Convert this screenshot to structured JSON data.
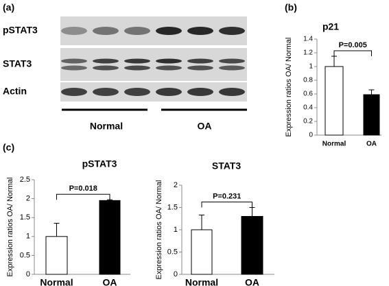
{
  "blot": {
    "label": "(a)",
    "rows": [
      "pSTAT3",
      "STAT3",
      "Actin"
    ],
    "groups": [
      "Normal",
      "OA"
    ]
  },
  "chart_data": [
    {
      "type": "bar",
      "panel_label": "(b)",
      "title": "p21",
      "ylabel": "Expression ratios OA/ Normal",
      "categories": [
        "Normal",
        "OA"
      ],
      "values": [
        1,
        0.59
      ],
      "errors": [
        0.15,
        0.07
      ],
      "colors": [
        "#ffffff",
        "#000000"
      ],
      "ylim": [
        0,
        1.4
      ],
      "yticks": [
        0,
        0.2,
        0.4,
        0.6,
        0.8,
        1,
        1.2,
        1.4
      ],
      "annotation": "P=0.005"
    },
    {
      "type": "bar",
      "panel_label": "(c)",
      "title": "pSTAT3",
      "ylabel": "Expression ratios OA/ Normal",
      "categories": [
        "Normal",
        "OA"
      ],
      "values": [
        1,
        1.95
      ],
      "errors": [
        0.35,
        0.02
      ],
      "colors": [
        "#ffffff",
        "#000000"
      ],
      "ylim": [
        0,
        2.5
      ],
      "yticks": [
        0,
        0.5,
        1,
        1.5,
        2,
        2.5
      ],
      "annotation": "P=0.018"
    },
    {
      "type": "bar",
      "title": "STAT3",
      "ylabel": "Expression ratios OA/ Normal",
      "categories": [
        "Normal",
        "OA"
      ],
      "values": [
        1,
        1.3
      ],
      "errors": [
        0.33,
        0.2
      ],
      "colors": [
        "#ffffff",
        "#000000"
      ],
      "ylim": [
        0,
        2
      ],
      "yticks": [
        0,
        0.5,
        1,
        1.5,
        2
      ],
      "annotation": "P=0.231"
    }
  ]
}
